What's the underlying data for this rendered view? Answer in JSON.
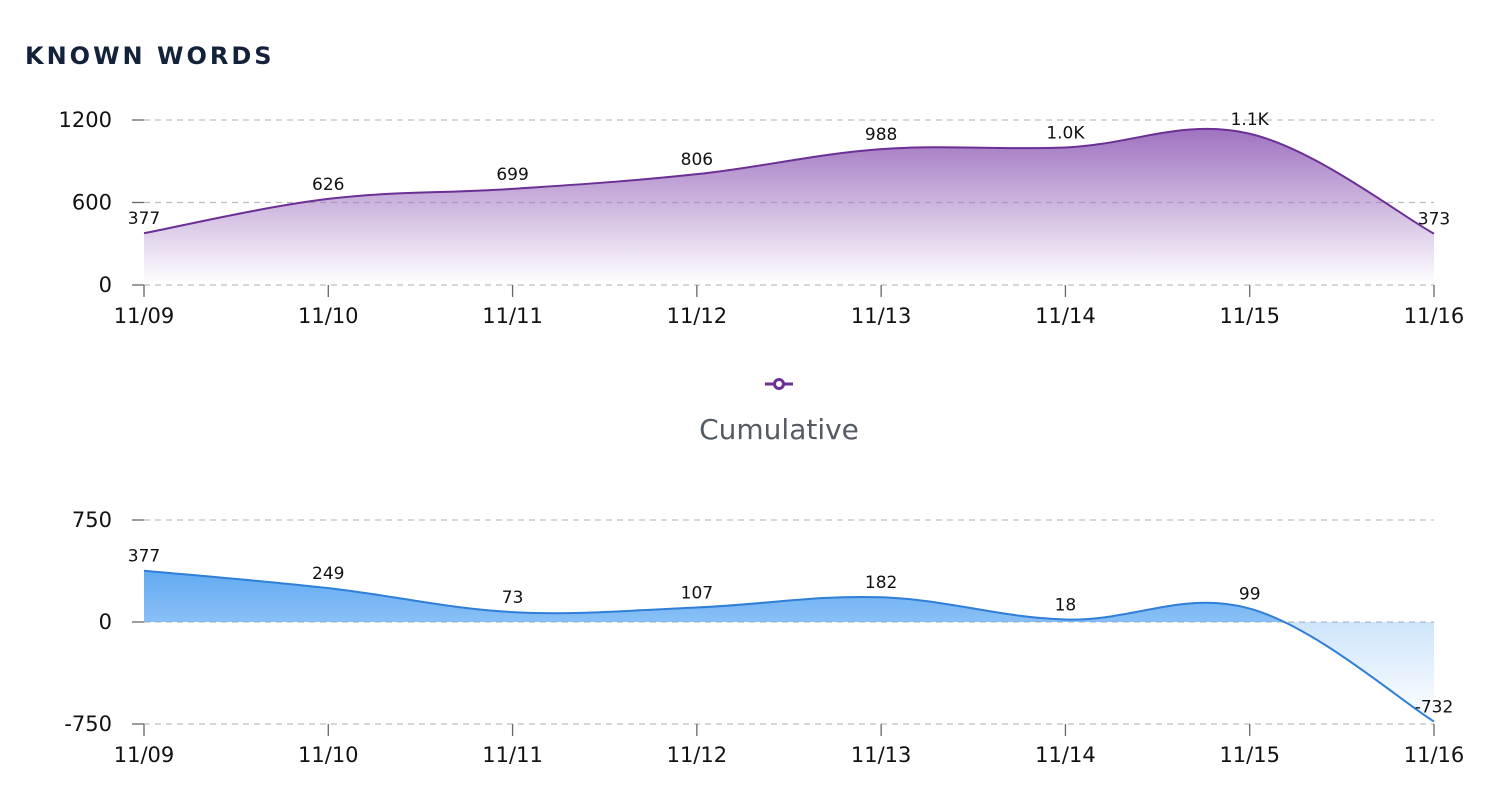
{
  "header": {
    "title": "KNOWN WORDS"
  },
  "legend": {
    "label": "Cumulative",
    "marker": "line-circle-marker",
    "color": "#6b2f96"
  },
  "chart_data": [
    {
      "type": "area",
      "x": [
        "11/09",
        "11/10",
        "11/11",
        "11/12",
        "11/13",
        "11/14",
        "11/15",
        "11/16"
      ],
      "series": [
        {
          "values": [
            377,
            626,
            699,
            806,
            988,
            1000,
            1100,
            373
          ],
          "data_labels": [
            "377",
            "626",
            "699",
            "806",
            "988",
            "1.0K",
            "1.1K",
            "373"
          ],
          "color": "#6b2f96",
          "fill": "#9a6bbd"
        }
      ],
      "yticks": [
        "0",
        "600",
        "1200"
      ],
      "ylim": [
        0,
        1200
      ],
      "grid": true,
      "smooth": true
    },
    {
      "type": "area",
      "x": [
        "11/09",
        "11/10",
        "11/11",
        "11/12",
        "11/13",
        "11/14",
        "11/15",
        "11/16"
      ],
      "series": [
        {
          "values": [
            377,
            249,
            73,
            107,
            182,
            18,
            99,
            -732
          ],
          "data_labels": [
            "377",
            "249",
            "73",
            "107",
            "182",
            "18",
            "99",
            "-732"
          ],
          "color": "#2f7fd8",
          "fill": "#5aa6f2"
        }
      ],
      "yticks": [
        "-750",
        "0",
        "750"
      ],
      "ylim": [
        -750,
        750
      ],
      "grid": true,
      "smooth": true
    }
  ]
}
